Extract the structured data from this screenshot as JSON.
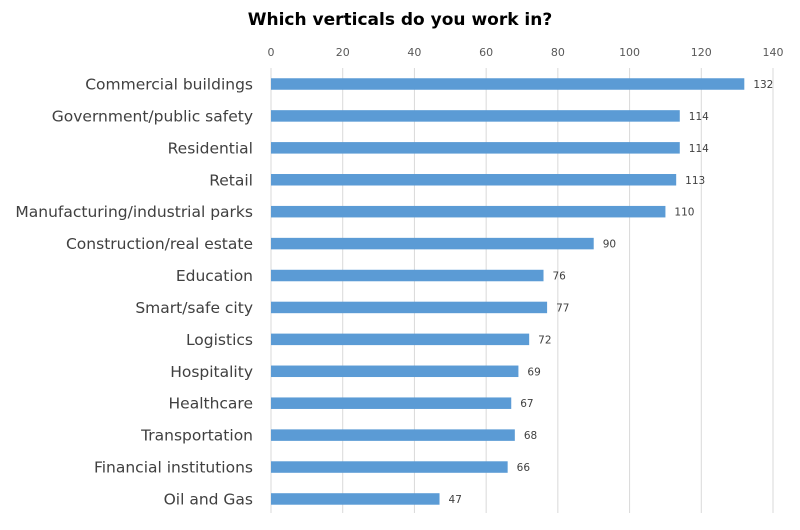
{
  "chart_data": {
    "type": "bar",
    "orientation": "horizontal",
    "title": "Which verticals do you work in?",
    "xlabel": "",
    "ylabel": "",
    "xlim": [
      0,
      140
    ],
    "x_ticks": [
      0,
      20,
      40,
      60,
      80,
      100,
      120,
      140
    ],
    "x_axis_position": "top",
    "grid": true,
    "legend": "none",
    "bar_color": "#5b9bd5",
    "categories": [
      "Commercial buildings",
      "Government/public safety",
      "Residential",
      "Retail",
      "Manufacturing/industrial parks",
      "Construction/real estate",
      "Education",
      "Smart/safe city",
      "Logistics",
      "Hospitality",
      "Healthcare",
      "Transportation",
      "Financial institutions",
      "Oil and Gas"
    ],
    "values": [
      132,
      114,
      114,
      113,
      110,
      90,
      76,
      77,
      72,
      69,
      67,
      68,
      66,
      47
    ]
  }
}
